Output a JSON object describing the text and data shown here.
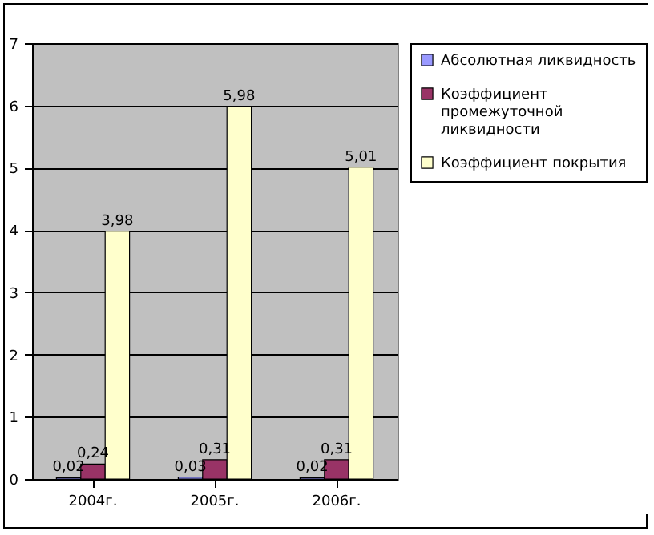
{
  "chart_data": {
    "type": "bar",
    "categories": [
      "2004г.",
      "2005г.",
      "2006г."
    ],
    "series": [
      {
        "name": "Абсолютная ликвидность",
        "color": "#9999ff",
        "values": [
          0.02,
          0.03,
          0.02
        ],
        "value_labels": [
          "0,02",
          "0,03",
          "0,02"
        ]
      },
      {
        "name": "Коэффициент промежуточной ликвидности",
        "color": "#993366",
        "values": [
          0.24,
          0.31,
          0.31
        ],
        "value_labels": [
          "0,24",
          "0,31",
          "0,31"
        ]
      },
      {
        "name": "Коэффициент покрытия",
        "color": "#ffffcc",
        "values": [
          3.98,
          5.98,
          5.01
        ],
        "value_labels": [
          "3,98",
          "5,98",
          "5,01"
        ]
      }
    ],
    "ylim": [
      0,
      7
    ],
    "yticks": [
      0,
      1,
      2,
      3,
      4,
      5,
      6,
      7
    ],
    "grid": "y",
    "legend": "right"
  }
}
